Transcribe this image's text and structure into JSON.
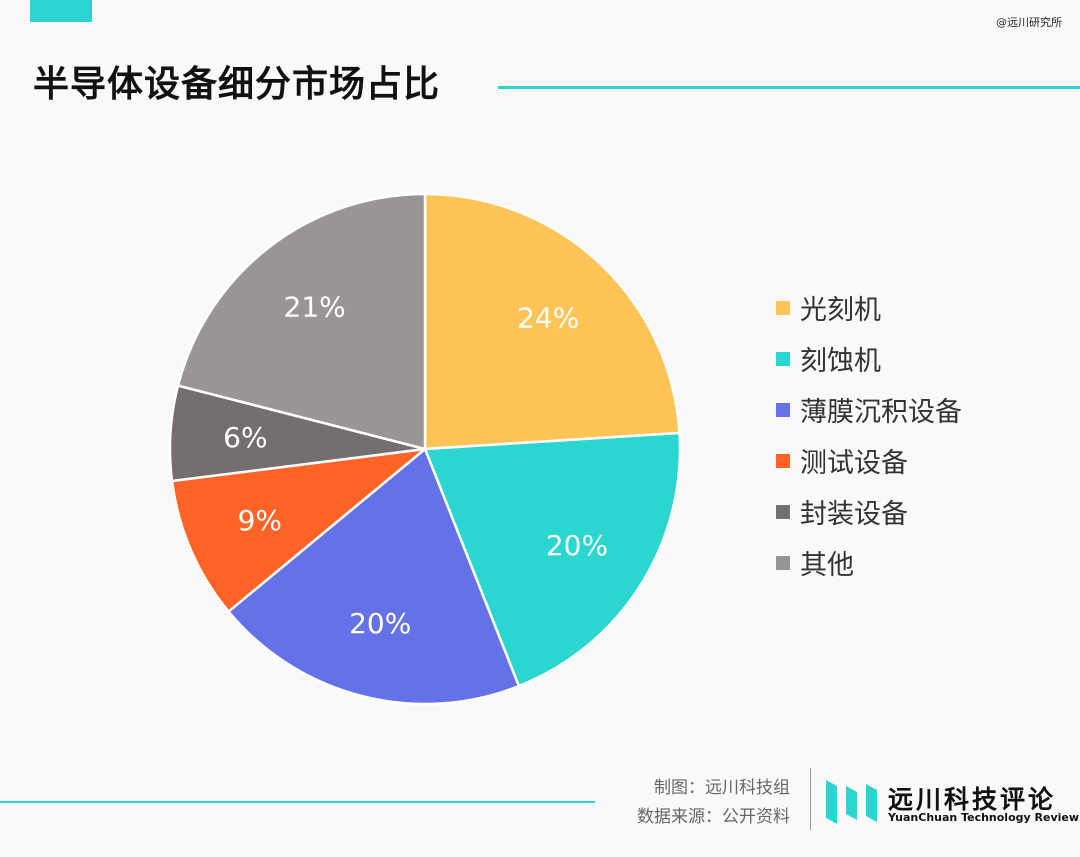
{
  "header": {
    "title": "半导体设备细分市场占比",
    "watermark": "@远川研究所"
  },
  "colors": {
    "accent": "#2ad6cf",
    "slices": [
      "#ffc455",
      "#2ad6cf",
      "#6571e6",
      "#ff6426",
      "#756e6e",
      "#999594"
    ]
  },
  "chart_data": {
    "type": "pie",
    "title": "半导体设备细分市场占比",
    "categories": [
      "光刻机",
      "刻蚀机",
      "薄膜沉积设备",
      "测试设备",
      "封装设备",
      "其他"
    ],
    "values": [
      24,
      20,
      20,
      9,
      6,
      21
    ],
    "labels": [
      "24%",
      "20%",
      "20%",
      "9%",
      "6%",
      "21%"
    ],
    "legend_position": "right"
  },
  "footer": {
    "credit": "制图：远川科技组",
    "source": "数据来源：公开资料",
    "brand_cn": "远川科技评论",
    "brand_en": "YuanChuan Technology Review"
  }
}
